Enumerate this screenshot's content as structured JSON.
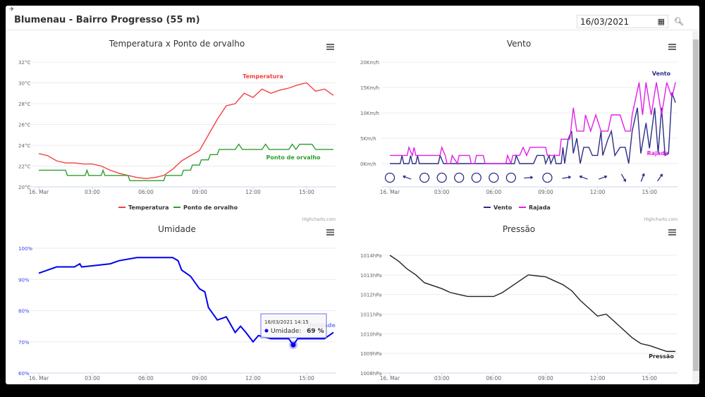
{
  "header": {
    "title": "Blumenau - Bairro Progresso (55 m)",
    "date": "16/03/2021"
  },
  "credits": "Highcharts.com",
  "xticks": [
    "16. Mar",
    "03:00",
    "06:00",
    "09:00",
    "12:00",
    "15:00"
  ],
  "colors": {
    "temp": "#f44040",
    "dew": "#2ca02c",
    "wind": "#2b2f86",
    "gust": "#e020e8",
    "hum": "#0000ee",
    "pres": "#222222"
  },
  "charts": [
    {
      "id": "temp",
      "title": "Temperatura x Ponto de orvalho",
      "yticks": [
        "20°C",
        "22°C",
        "24°C",
        "26°C",
        "28°C",
        "30°C",
        "32°C"
      ],
      "ymin": 20,
      "ymax": 32,
      "series": [
        {
          "name": "Temperatura",
          "color": "#f44040",
          "label": "Temperatura",
          "data": [
            [
              0,
              23.2
            ],
            [
              0.5,
              23
            ],
            [
              1,
              22.5
            ],
            [
              1.5,
              22.3
            ],
            [
              2,
              22.3
            ],
            [
              2.5,
              22.2
            ],
            [
              3,
              22.2
            ],
            [
              3.5,
              22
            ],
            [
              4,
              21.6
            ],
            [
              4.5,
              21.3
            ],
            [
              5,
              21.1
            ],
            [
              5.5,
              20.9
            ],
            [
              6,
              20.8
            ],
            [
              6.5,
              20.9
            ],
            [
              7,
              21.1
            ],
            [
              7.5,
              21.7
            ],
            [
              8,
              22.5
            ],
            [
              8.5,
              23
            ],
            [
              9,
              23.5
            ],
            [
              9.5,
              25
            ],
            [
              10,
              26.5
            ],
            [
              10.5,
              27.8
            ],
            [
              11,
              28
            ],
            [
              11.5,
              29
            ],
            [
              12,
              28.6
            ],
            [
              12.5,
              29.4
            ],
            [
              13,
              29
            ],
            [
              13.5,
              29.3
            ],
            [
              14,
              29.5
            ],
            [
              14.5,
              29.8
            ],
            [
              15,
              30
            ],
            [
              15.5,
              29.2
            ],
            [
              16,
              29.4
            ],
            [
              16.5,
              28.8
            ]
          ]
        },
        {
          "name": "Ponto de orvalho",
          "color": "#2ca02c",
          "label": "Ponto de orvalho",
          "data": [
            [
              0,
              21.6
            ],
            [
              1.5,
              21.6
            ],
            [
              1.6,
              21.1
            ],
            [
              2.6,
              21.1
            ],
            [
              2.7,
              21.6
            ],
            [
              2.8,
              21.1
            ],
            [
              3.5,
              21.1
            ],
            [
              3.6,
              21.6
            ],
            [
              3.7,
              21.1
            ],
            [
              5,
              21.1
            ],
            [
              5.1,
              20.6
            ],
            [
              7,
              20.6
            ],
            [
              7.1,
              21.1
            ],
            [
              8,
              21.1
            ],
            [
              8.1,
              21.6
            ],
            [
              8.5,
              21.6
            ],
            [
              8.6,
              22.1
            ],
            [
              9,
              22.1
            ],
            [
              9.1,
              22.6
            ],
            [
              9.5,
              22.6
            ],
            [
              9.6,
              23.1
            ],
            [
              10,
              23.1
            ],
            [
              10.1,
              23.6
            ],
            [
              11,
              23.6
            ],
            [
              11.2,
              24.1
            ],
            [
              11.4,
              23.6
            ],
            [
              12.5,
              23.6
            ],
            [
              12.7,
              24.1
            ],
            [
              12.9,
              23.6
            ],
            [
              14,
              23.6
            ],
            [
              14.2,
              24.1
            ],
            [
              14.4,
              23.6
            ],
            [
              14.6,
              24.1
            ],
            [
              15.3,
              24.1
            ],
            [
              15.5,
              23.6
            ],
            [
              16.5,
              23.6
            ]
          ]
        }
      ],
      "legend": [
        "Temperatura",
        "Ponto de orvalho"
      ]
    },
    {
      "id": "vento",
      "title": "Vento",
      "yticks": [
        "0Km/h",
        "5Km/h",
        "10Km/h",
        "15Km/h",
        "20Km/h"
      ],
      "ymin": 0,
      "ymax": 20,
      "series": [
        {
          "name": "Vento",
          "color": "#2b2f86",
          "label": "Vento",
          "data": [
            [
              0,
              0
            ],
            [
              0.6,
              0
            ],
            [
              0.7,
              1.6
            ],
            [
              0.8,
              0
            ],
            [
              1.1,
              0
            ],
            [
              1.2,
              1.6
            ],
            [
              1.3,
              0
            ],
            [
              1.5,
              0
            ],
            [
              1.6,
              1.6
            ],
            [
              1.7,
              0
            ],
            [
              2.8,
              0
            ],
            [
              2.9,
              1.6
            ],
            [
              3.1,
              0
            ],
            [
              7.2,
              0
            ],
            [
              7.3,
              1.6
            ],
            [
              7.5,
              0
            ],
            [
              8.3,
              0
            ],
            [
              8.5,
              1.6
            ],
            [
              8.9,
              1.6
            ],
            [
              9,
              0
            ],
            [
              9.2,
              1.6
            ],
            [
              9.3,
              0
            ],
            [
              9.5,
              1.6
            ],
            [
              9.6,
              0
            ],
            [
              9.9,
              0
            ],
            [
              10,
              3.2
            ],
            [
              10.1,
              0
            ],
            [
              10.3,
              4.8
            ],
            [
              10.5,
              6.4
            ],
            [
              10.6,
              2
            ],
            [
              10.8,
              5
            ],
            [
              11,
              0
            ],
            [
              11.2,
              3.2
            ],
            [
              11.5,
              3.2
            ],
            [
              11.7,
              1.6
            ],
            [
              12,
              1.6
            ],
            [
              12.2,
              6.4
            ],
            [
              12.3,
              1.6
            ],
            [
              12.6,
              4.8
            ],
            [
              12.8,
              6.4
            ],
            [
              13,
              1.6
            ],
            [
              13.3,
              3.2
            ],
            [
              13.6,
              3.2
            ],
            [
              13.8,
              0
            ],
            [
              14,
              6.4
            ],
            [
              14.3,
              11
            ],
            [
              14.5,
              2
            ],
            [
              14.8,
              8
            ],
            [
              15,
              3
            ],
            [
              15.3,
              11
            ],
            [
              15.5,
              2
            ],
            [
              15.7,
              11
            ],
            [
              15.9,
              1.6
            ],
            [
              16.1,
              2
            ],
            [
              16.3,
              14
            ],
            [
              16.5,
              12
            ]
          ]
        },
        {
          "name": "Rajada",
          "color": "#e020e8",
          "label": "Rajada",
          "data": [
            [
              0,
              1.6
            ],
            [
              1,
              1.6
            ],
            [
              1.1,
              3.2
            ],
            [
              1.3,
              1.6
            ],
            [
              1.4,
              3.2
            ],
            [
              1.5,
              1.6
            ],
            [
              2.9,
              1.6
            ],
            [
              3,
              3.2
            ],
            [
              3.2,
              1.6
            ],
            [
              3.3,
              0
            ],
            [
              3.5,
              0
            ],
            [
              3.6,
              1.6
            ],
            [
              3.9,
              0
            ],
            [
              4,
              1.6
            ],
            [
              4.6,
              1.6
            ],
            [
              4.7,
              0
            ],
            [
              4.9,
              0
            ],
            [
              5,
              1.6
            ],
            [
              5.4,
              1.6
            ],
            [
              5.5,
              0
            ],
            [
              6.7,
              0
            ],
            [
              6.8,
              1.6
            ],
            [
              7,
              0
            ],
            [
              7.1,
              1.6
            ],
            [
              7.5,
              1.6
            ],
            [
              7.7,
              3.2
            ],
            [
              7.9,
              1.6
            ],
            [
              8.1,
              3.2
            ],
            [
              9,
              3.2
            ],
            [
              9.1,
              1.6
            ],
            [
              9.8,
              1.6
            ],
            [
              9.9,
              4.8
            ],
            [
              10.4,
              4.8
            ],
            [
              10.6,
              11
            ],
            [
              10.8,
              6.4
            ],
            [
              11.2,
              6.4
            ],
            [
              11.3,
              9.6
            ],
            [
              11.6,
              6.4
            ],
            [
              11.9,
              9.6
            ],
            [
              12.2,
              6.4
            ],
            [
              12.6,
              6.4
            ],
            [
              12.8,
              9.6
            ],
            [
              13.3,
              9.6
            ],
            [
              13.6,
              6.4
            ],
            [
              13.9,
              6.4
            ],
            [
              14,
              9.6
            ],
            [
              14.4,
              16
            ],
            [
              14.6,
              9.6
            ],
            [
              14.8,
              16
            ],
            [
              15.1,
              9.6
            ],
            [
              15.4,
              16
            ],
            [
              15.7,
              9.6
            ],
            [
              16,
              16
            ],
            [
              16.3,
              13
            ],
            [
              16.5,
              16
            ]
          ]
        }
      ],
      "legend": [
        "Vento",
        "Rajada"
      ],
      "arrows": [
        [
          0,
          "calm"
        ],
        [
          1,
          110
        ],
        [
          2,
          "calm"
        ],
        [
          3,
          "calm"
        ],
        [
          4,
          "calm"
        ],
        [
          5,
          "calm"
        ],
        [
          6,
          "calm"
        ],
        [
          7,
          "calm"
        ],
        [
          8,
          -95
        ],
        [
          9.1,
          "calm"
        ],
        [
          10.2,
          -100
        ],
        [
          11.2,
          110
        ],
        [
          12.3,
          -110
        ],
        [
          13.5,
          -30
        ],
        [
          14.6,
          200
        ],
        [
          15.6,
          215
        ]
      ]
    },
    {
      "id": "umid",
      "title": "Umidade",
      "yticks": [
        "60%",
        "70%",
        "80%",
        "90%",
        "100%"
      ],
      "ymin": 60,
      "ymax": 100,
      "series": [
        {
          "name": "Umidade",
          "color": "#0000ee",
          "label": "Umidade",
          "data": [
            [
              0,
              92
            ],
            [
              0.5,
              93
            ],
            [
              1,
              94
            ],
            [
              2,
              94
            ],
            [
              2.3,
              95
            ],
            [
              2.4,
              94
            ],
            [
              4,
              95
            ],
            [
              4.5,
              96
            ],
            [
              5.5,
              97
            ],
            [
              7.5,
              97
            ],
            [
              7.8,
              96
            ],
            [
              8,
              93
            ],
            [
              8.5,
              91
            ],
            [
              9,
              87
            ],
            [
              9.3,
              86
            ],
            [
              9.5,
              81
            ],
            [
              10,
              77
            ],
            [
              10.5,
              78
            ],
            [
              11,
              73
            ],
            [
              11.3,
              75
            ],
            [
              11.6,
              73
            ],
            [
              12,
              70
            ],
            [
              12.3,
              72
            ],
            [
              13,
              71
            ],
            [
              14,
              71
            ],
            [
              14.25,
              69
            ],
            [
              14.5,
              71
            ],
            [
              15,
              71
            ],
            [
              16,
              71
            ],
            [
              16.5,
              73
            ]
          ]
        }
      ],
      "tooltip": {
        "date": "16/03/2021 14:15",
        "label": "Umidade:",
        "value": "69 %",
        "hour": 14.25,
        "v": 69
      }
    },
    {
      "id": "pres",
      "title": "Pressão",
      "yticks": [
        "1008hPa",
        "1009hPa",
        "1010hPa",
        "1011hPa",
        "1012hPa",
        "1013hPa",
        "1014hPa"
      ],
      "ymin": 1008,
      "ymax": 1014,
      "series": [
        {
          "name": "Pressão",
          "color": "#222222",
          "label": "Pressão",
          "data": [
            [
              0,
              1014
            ],
            [
              0.5,
              1013.7
            ],
            [
              1,
              1013.3
            ],
            [
              1.5,
              1013
            ],
            [
              2,
              1012.6
            ],
            [
              3,
              1012.3
            ],
            [
              3.5,
              1012.1
            ],
            [
              4,
              1012
            ],
            [
              4.5,
              1011.9
            ],
            [
              6,
              1011.9
            ],
            [
              6.5,
              1012.1
            ],
            [
              7,
              1012.4
            ],
            [
              7.5,
              1012.7
            ],
            [
              8,
              1013
            ],
            [
              9,
              1012.9
            ],
            [
              9.5,
              1012.7
            ],
            [
              10,
              1012.5
            ],
            [
              10.5,
              1012.2
            ],
            [
              11,
              1011.7
            ],
            [
              11.5,
              1011.3
            ],
            [
              12,
              1010.9
            ],
            [
              12.5,
              1011
            ],
            [
              13,
              1010.6
            ],
            [
              13.5,
              1010.2
            ],
            [
              14,
              1009.8
            ],
            [
              14.5,
              1009.5
            ],
            [
              15,
              1009.4
            ],
            [
              16,
              1009.1
            ],
            [
              16.5,
              1009.1
            ]
          ]
        }
      ]
    }
  ]
}
